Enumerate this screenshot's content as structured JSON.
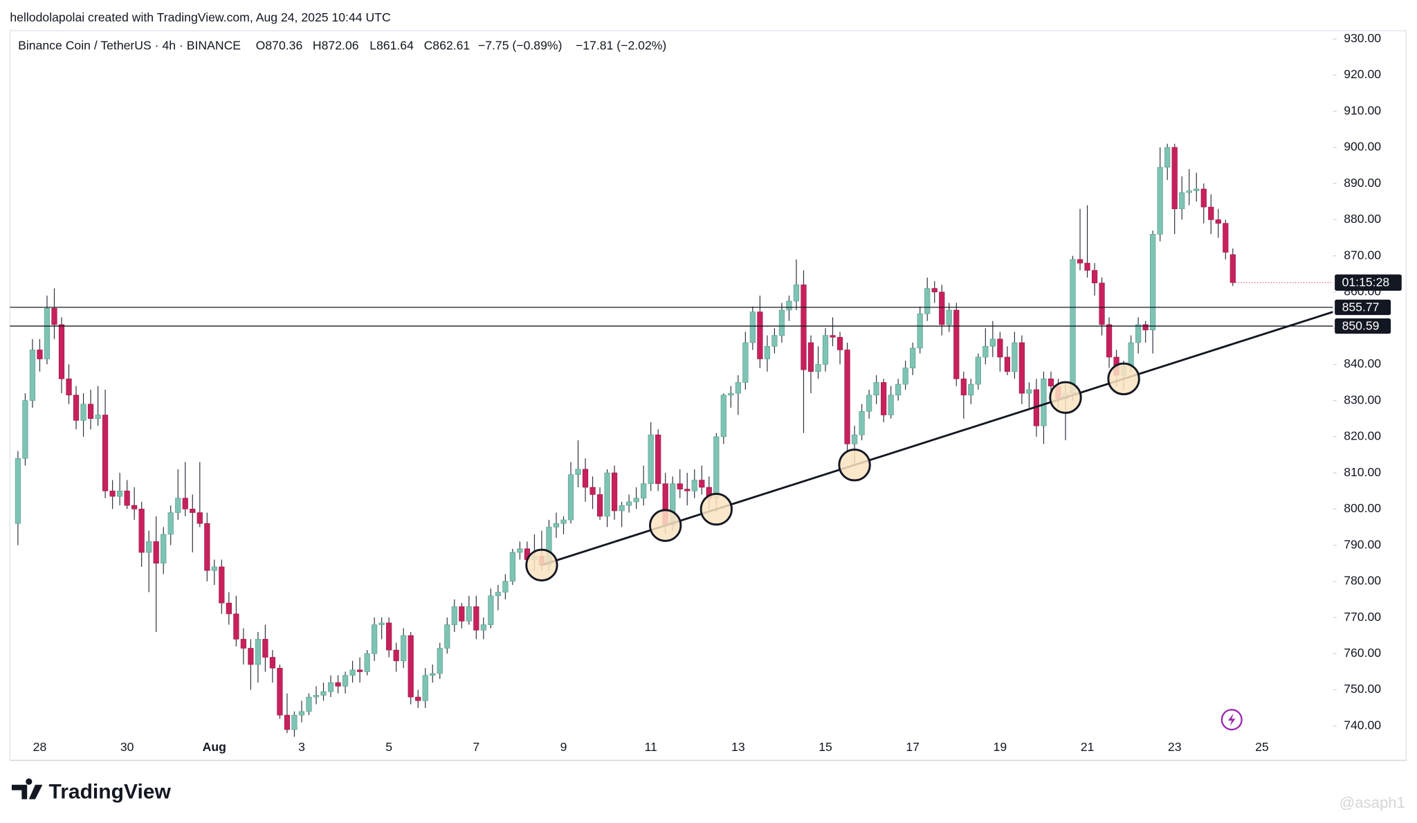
{
  "header": {
    "attribution": "hellodolapolai created with TradingView.com, Aug 24, 2025 10:44 UTC",
    "brand": "TradingView",
    "watermark": "@asaph1"
  },
  "chart_data": {
    "type": "candlestick",
    "symbol": "Binance Coin / TetherUS · 4h · BINANCE",
    "ohlc_legend": [
      "O870.36",
      "H872.06",
      "L861.64",
      "C862.61"
    ],
    "change": "−7.75 (−0.89%)",
    "change_2": "−17.81 (−2.02%)",
    "up_color": "#7ec3b3",
    "down_color": "#c7215d",
    "categories": [
      null,
      null,
      null,
      "28",
      null,
      null,
      null,
      null,
      null,
      null,
      null,
      null,
      null,
      null,
      null,
      "30",
      null,
      null,
      null,
      null,
      null,
      null,
      null,
      null,
      null,
      null,
      null,
      "Aug",
      null,
      null,
      null,
      null,
      null,
      null,
      null,
      null,
      null,
      null,
      null,
      "3",
      null,
      null,
      null,
      null,
      null,
      null,
      null,
      null,
      null,
      null,
      null,
      "5",
      null,
      null,
      null,
      null,
      null,
      null,
      null,
      null,
      null,
      null,
      null,
      "7",
      null,
      null,
      null,
      null,
      null,
      null,
      null,
      null,
      null,
      null,
      null,
      "9",
      null,
      null,
      null,
      null,
      null,
      null,
      null,
      null,
      null,
      null,
      null,
      "11",
      null,
      null,
      null,
      null,
      null,
      null,
      null,
      null,
      null,
      null,
      null,
      "13",
      null,
      null,
      null,
      null,
      null,
      null,
      null,
      null,
      null,
      null,
      null,
      "15",
      null,
      null,
      null,
      null,
      null,
      null,
      null,
      null,
      null,
      null,
      null,
      "17",
      null,
      null,
      null,
      null,
      null,
      null,
      null,
      null,
      null,
      null,
      null,
      "19",
      null,
      null,
      null,
      null,
      null,
      null,
      null,
      null,
      null,
      null,
      null,
      "21",
      null,
      null,
      null,
      null,
      null,
      null,
      null,
      null,
      null,
      null,
      null,
      "23",
      null,
      null,
      null,
      null,
      null,
      null,
      null,
      null
    ],
    "future_tick_labels": [
      "25"
    ],
    "ohlc": [
      [
        796,
        816,
        790,
        814
      ],
      [
        814,
        832,
        812,
        830
      ],
      [
        830,
        847,
        828,
        844
      ],
      [
        844,
        847,
        838,
        841.5
      ],
      [
        841.5,
        859,
        840,
        855.5
      ],
      [
        855.5,
        861,
        847,
        851
      ],
      [
        851,
        853,
        832,
        836
      ],
      [
        836,
        840,
        829,
        831.5
      ],
      [
        831.5,
        834,
        822,
        824.5
      ],
      [
        824.5,
        832,
        820,
        829
      ],
      [
        829,
        833,
        822,
        825
      ],
      [
        825,
        834,
        823,
        826
      ],
      [
        826,
        833,
        803,
        805
      ],
      [
        805,
        808,
        800,
        803.5
      ],
      [
        803.5,
        810,
        801,
        805
      ],
      [
        805,
        808,
        800,
        801
      ],
      [
        801,
        806,
        797,
        800
      ],
      [
        800,
        802,
        784,
        788
      ],
      [
        788,
        794,
        777,
        791
      ],
      [
        791,
        798,
        766,
        785
      ],
      [
        785,
        795,
        782,
        793
      ],
      [
        793,
        801,
        790,
        799
      ],
      [
        799,
        811,
        797,
        803
      ],
      [
        803,
        813,
        798,
        800
      ],
      [
        800,
        804,
        788,
        799
      ],
      [
        799,
        813,
        795,
        796
      ],
      [
        796,
        799,
        780,
        783
      ],
      [
        783,
        786,
        779,
        784
      ],
      [
        784,
        786,
        771,
        774
      ],
      [
        774,
        777,
        768,
        771
      ],
      [
        771,
        776,
        762,
        764
      ],
      [
        764,
        767,
        757,
        761.5
      ],
      [
        761.5,
        764,
        750,
        757
      ],
      [
        757,
        766,
        752,
        764
      ],
      [
        764,
        768,
        755,
        759
      ],
      [
        759,
        761,
        752,
        756
      ],
      [
        756,
        757,
        742,
        743
      ],
      [
        743,
        749,
        738,
        739
      ],
      [
        739,
        744,
        737,
        743
      ],
      [
        743,
        747,
        741,
        744
      ],
      [
        744,
        749,
        743,
        748
      ],
      [
        748,
        751,
        746,
        748.5
      ],
      [
        748.5,
        752,
        747,
        749.5
      ],
      [
        749.5,
        754,
        748,
        752
      ],
      [
        752,
        754,
        749,
        751
      ],
      [
        751,
        755,
        749,
        754
      ],
      [
        754,
        758,
        752,
        755.5
      ],
      [
        755.5,
        759,
        752,
        755
      ],
      [
        755,
        761,
        754,
        760
      ],
      [
        760,
        770,
        758,
        768
      ],
      [
        768,
        770,
        764,
        768.5
      ],
      [
        768.5,
        770,
        759,
        761
      ],
      [
        761,
        763,
        755,
        758
      ],
      [
        758,
        767,
        756,
        765
      ],
      [
        765,
        766,
        746,
        748
      ],
      [
        748,
        750,
        745,
        747
      ],
      [
        747,
        756,
        745,
        754
      ],
      [
        754,
        757,
        752,
        754.5
      ],
      [
        754.5,
        763,
        753,
        761.5
      ],
      [
        761.5,
        770,
        760,
        768
      ],
      [
        768,
        775,
        766,
        773
      ],
      [
        773,
        774,
        767,
        769
      ],
      [
        769,
        776,
        768,
        773
      ],
      [
        773,
        776,
        764,
        766.5
      ],
      [
        766.5,
        770,
        764,
        768
      ],
      [
        768,
        778,
        767,
        776
      ],
      [
        776,
        779,
        772,
        777
      ],
      [
        777,
        782,
        775,
        780
      ],
      [
        780,
        789,
        779,
        788
      ],
      [
        788,
        791,
        786,
        789
      ],
      [
        789,
        791,
        784,
        786
      ],
      [
        786,
        793,
        783,
        787
      ],
      [
        787,
        794,
        783,
        784.5
      ],
      [
        784.5,
        797,
        783,
        795
      ],
      [
        795,
        799,
        792,
        796
      ],
      [
        796,
        798,
        793,
        797
      ],
      [
        797,
        813,
        796,
        809.5
      ],
      [
        809.5,
        819,
        806,
        811
      ],
      [
        811,
        814,
        802,
        806
      ],
      [
        806,
        809,
        800,
        804
      ],
      [
        804,
        806,
        797,
        798
      ],
      [
        798,
        811,
        795,
        810
      ],
      [
        810,
        812,
        797,
        799.5
      ],
      [
        799.5,
        802,
        795,
        801
      ],
      [
        801,
        804,
        799,
        802
      ],
      [
        802,
        806,
        800,
        803
      ],
      [
        803,
        812,
        801,
        807
      ],
      [
        807,
        824,
        805,
        820.5
      ],
      [
        820.5,
        822,
        805,
        807
      ],
      [
        807,
        810,
        793,
        795.5
      ],
      [
        795.5,
        809,
        794,
        807
      ],
      [
        807,
        811,
        803,
        805.5
      ],
      [
        805.5,
        810,
        801,
        805
      ],
      [
        805,
        811,
        803,
        808
      ],
      [
        808,
        812,
        804,
        806
      ],
      [
        806,
        809,
        800,
        803
      ],
      [
        803,
        821,
        799,
        820
      ],
      [
        820,
        832,
        818,
        831.5
      ],
      [
        831.5,
        834,
        828,
        832
      ],
      [
        832,
        837,
        826,
        835
      ],
      [
        835,
        849,
        833,
        846
      ],
      [
        846,
        856,
        844,
        854.5
      ],
      [
        854.5,
        859,
        839,
        841.5
      ],
      [
        841.5,
        848,
        838,
        845
      ],
      [
        845,
        850,
        843,
        848
      ],
      [
        848,
        857,
        846,
        855
      ],
      [
        855,
        859,
        852,
        857.5
      ],
      [
        857.5,
        869,
        855,
        862
      ],
      [
        862,
        866,
        821,
        838.5
      ],
      [
        846,
        848,
        832,
        838
      ],
      [
        838,
        845,
        836,
        840
      ],
      [
        840,
        850,
        838,
        848
      ],
      [
        848,
        853,
        845,
        847.5
      ],
      [
        847.5,
        849,
        840,
        844
      ],
      [
        844,
        846,
        816,
        818
      ],
      [
        818,
        823,
        812,
        820.5
      ],
      [
        820.5,
        829,
        819,
        827
      ],
      [
        827,
        833,
        825,
        831.5
      ],
      [
        831.5,
        837,
        829,
        835
      ],
      [
        835,
        836,
        824,
        826
      ],
      [
        826,
        834,
        825,
        831.5
      ],
      [
        831.5,
        836,
        830,
        834.5
      ],
      [
        834.5,
        841,
        833,
        839
      ],
      [
        839,
        846,
        837,
        844.5
      ],
      [
        844.5,
        856,
        843,
        854
      ],
      [
        854,
        864,
        852,
        861
      ],
      [
        861,
        863,
        857,
        860
      ],
      [
        860,
        862,
        848,
        851
      ],
      [
        851,
        857,
        849,
        855
      ],
      [
        855,
        857,
        834,
        836
      ],
      [
        836,
        838,
        825,
        831.5
      ],
      [
        831.5,
        836,
        829,
        834.5
      ],
      [
        834.5,
        843,
        833,
        842
      ],
      [
        842,
        850,
        840,
        845
      ],
      [
        845,
        852,
        842,
        847
      ],
      [
        847,
        849,
        838,
        842
      ],
      [
        842,
        845,
        837,
        838
      ],
      [
        838,
        849,
        836,
        846
      ],
      [
        846,
        848,
        829,
        832
      ],
      [
        832,
        835,
        828,
        833
      ],
      [
        833,
        836,
        820,
        823
      ],
      [
        823,
        838,
        818,
        836
      ],
      [
        836,
        838,
        831,
        834
      ],
      [
        834,
        836,
        828,
        830.5
      ],
      [
        830.5,
        835,
        819,
        832
      ],
      [
        832,
        870,
        830,
        869
      ],
      [
        869,
        883,
        866,
        868
      ],
      [
        868,
        884,
        864,
        866
      ],
      [
        866,
        868,
        859,
        862.5
      ],
      [
        862.5,
        864,
        848,
        851
      ],
      [
        851,
        853,
        839,
        842
      ],
      [
        842,
        844,
        834,
        837
      ],
      [
        837,
        841,
        833,
        839.5
      ],
      [
        839.5,
        848,
        838,
        846
      ],
      [
        846,
        853,
        843,
        851
      ],
      [
        851,
        852,
        846,
        849.5
      ],
      [
        849.5,
        877,
        843,
        876
      ],
      [
        876,
        900,
        874,
        894.5
      ],
      [
        894.5,
        901,
        891,
        900
      ],
      [
        900,
        901,
        876,
        883
      ],
      [
        883,
        892,
        880,
        887.5
      ],
      [
        887.5,
        894,
        884,
        888
      ],
      [
        888,
        893,
        885,
        888.5
      ],
      [
        888.5,
        890,
        879,
        883.5
      ],
      [
        883.5,
        887,
        876,
        880
      ],
      [
        880,
        883,
        875,
        879
      ],
      [
        879,
        880,
        869,
        871
      ],
      [
        870.36,
        872.06,
        861.64,
        862.61
      ]
    ],
    "ylim": [
      727.5,
      935
    ],
    "yticks": [
      {
        "value": 930,
        "label": "930.00"
      },
      {
        "value": 920,
        "label": "920.00"
      },
      {
        "value": 910,
        "label": "910.00"
      },
      {
        "value": 900,
        "label": "900.00"
      },
      {
        "value": 890,
        "label": "890.00"
      },
      {
        "value": 880,
        "label": "880.00"
      },
      {
        "value": 870,
        "label": "870.00"
      },
      {
        "value": 860,
        "label": "860.00"
      },
      {
        "value": 850,
        "label": "850.00"
      },
      {
        "value": 840,
        "label": "840.00"
      },
      {
        "value": 830,
        "label": "830.00"
      },
      {
        "value": 820,
        "label": "820.00"
      },
      {
        "value": 810,
        "label": "810.00"
      },
      {
        "value": 800,
        "label": "800.00"
      },
      {
        "value": 790,
        "label": "790.00"
      },
      {
        "value": 780,
        "label": "780.00"
      },
      {
        "value": 770,
        "label": "770.00"
      },
      {
        "value": 760,
        "label": "760.00"
      },
      {
        "value": 750,
        "label": "750.00"
      },
      {
        "value": 740,
        "label": "740.00"
      }
    ],
    "levels": [
      {
        "value": 855.77,
        "label": "855.77"
      },
      {
        "value": 850.59,
        "label": "850.59"
      }
    ],
    "countdown": "01:15:28",
    "trendline": {
      "start": 784.5,
      "end": 854.5
    }
  }
}
